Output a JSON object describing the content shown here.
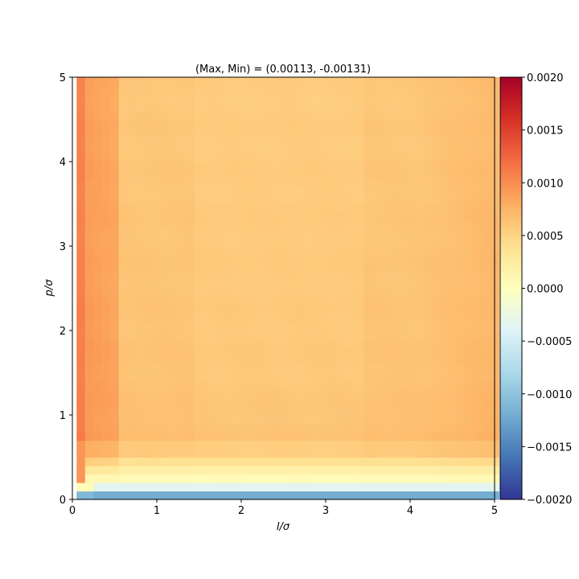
{
  "chart_data": {
    "type": "heatmap",
    "title": "(Max, Min) = (0.00113, -0.00131)",
    "xlabel": "l/σ",
    "ylabel": "p/σ",
    "xlim": [
      0,
      5
    ],
    "ylim": [
      0,
      5
    ],
    "x_ticks": [
      "0",
      "1",
      "2",
      "3",
      "4",
      "5"
    ],
    "y_ticks": [
      "0",
      "1",
      "2",
      "3",
      "4",
      "5"
    ],
    "colorbar": {
      "colormap": "RdYlBu_r",
      "range": [
        -0.002,
        0.002
      ],
      "ticks": [
        "0.0020",
        "0.0015",
        "0.0010",
        "0.0005",
        "0.0000",
        "−0.0005",
        "−0.0010",
        "−0.0015",
        "−0.0020"
      ]
    },
    "grid": {
      "nx": 50,
      "ny": 50,
      "x_start": 0.1,
      "y_start": 0.05,
      "cell": 0.1,
      "summary": [
        {
          "region": "l = 0.1",
          "value": 0.00108
        },
        {
          "region": "l 0.2–0.5, p > 1",
          "value": 0.0009
        },
        {
          "region": "l > 0.6, p > 1",
          "value": 0.0006
        },
        {
          "region": "p ≈ 0.15 band",
          "value": -0.0003
        },
        {
          "region": "p ≈ 0.05 row",
          "value": -0.0012
        }
      ]
    }
  }
}
